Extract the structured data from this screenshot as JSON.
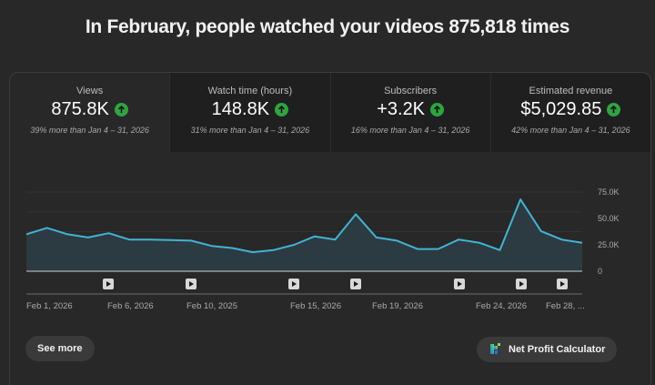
{
  "headline": "In February, people watched your videos 875,818 times",
  "cards": [
    {
      "label": "Views",
      "value": "875.8K",
      "trend_icon": "arrow-up-icon",
      "compare": "39% more than Jan 4 – 31, 2026"
    },
    {
      "label": "Watch time (hours)",
      "value": "148.8K",
      "trend_icon": "arrow-up-icon",
      "compare": "31% more than Jan 4 – 31, 2026"
    },
    {
      "label": "Subscribers",
      "value": "+3.2K",
      "trend_icon": "arrow-up-icon",
      "compare": "16% more than Jan 4 – 31, 2026"
    },
    {
      "label": "Estimated revenue",
      "value": "$5,029.85",
      "trend_icon": "arrow-up-icon",
      "compare": "42% more than Jan 4 – 31, 2026"
    }
  ],
  "chart_data": {
    "type": "area",
    "title": "Views",
    "x": [
      "Feb 1",
      "Feb 2",
      "Feb 3",
      "Feb 4",
      "Feb 5",
      "Feb 6",
      "Feb 7",
      "Feb 8",
      "Feb 9",
      "Feb 10",
      "Feb 11",
      "Feb 12",
      "Feb 13",
      "Feb 14",
      "Feb 15",
      "Feb 16",
      "Feb 17",
      "Feb 18",
      "Feb 19",
      "Feb 20",
      "Feb 21",
      "Feb 22",
      "Feb 23",
      "Feb 24",
      "Feb 25",
      "Feb 26",
      "Feb 27",
      "Feb 28"
    ],
    "values": [
      35000,
      41000,
      35000,
      32000,
      36000,
      30000,
      30000,
      29500,
      29000,
      24000,
      22000,
      18000,
      20000,
      25000,
      33000,
      30000,
      54000,
      32000,
      29000,
      21000,
      21000,
      30000,
      27000,
      20000,
      68000,
      38000,
      30000,
      27000
    ],
    "y_ticks": [
      "75.0K",
      "50.0K",
      "25.0K",
      "0"
    ],
    "ylim": [
      0,
      75000
    ],
    "x_tick_labels": [
      "Feb 1, 2026",
      "Feb 6, 2026",
      "Feb 10, 2025",
      "Feb 15, 2026",
      "Feb 19, 2026",
      "Feb 24, 2026",
      "Feb 28, ..."
    ],
    "video_markers": [
      "Feb 5",
      "Feb 9",
      "Feb 14",
      "Feb 17",
      "Feb 22",
      "Feb 25",
      "Feb 27"
    ],
    "grid": true,
    "line_color": "#41b4d2",
    "fill_color": "#2c3a41"
  },
  "buttons": {
    "see_more": "See more",
    "net_profit": "Net Profit Calculator"
  },
  "colors": {
    "up_badge": "#2ba640",
    "background": "#282828"
  }
}
